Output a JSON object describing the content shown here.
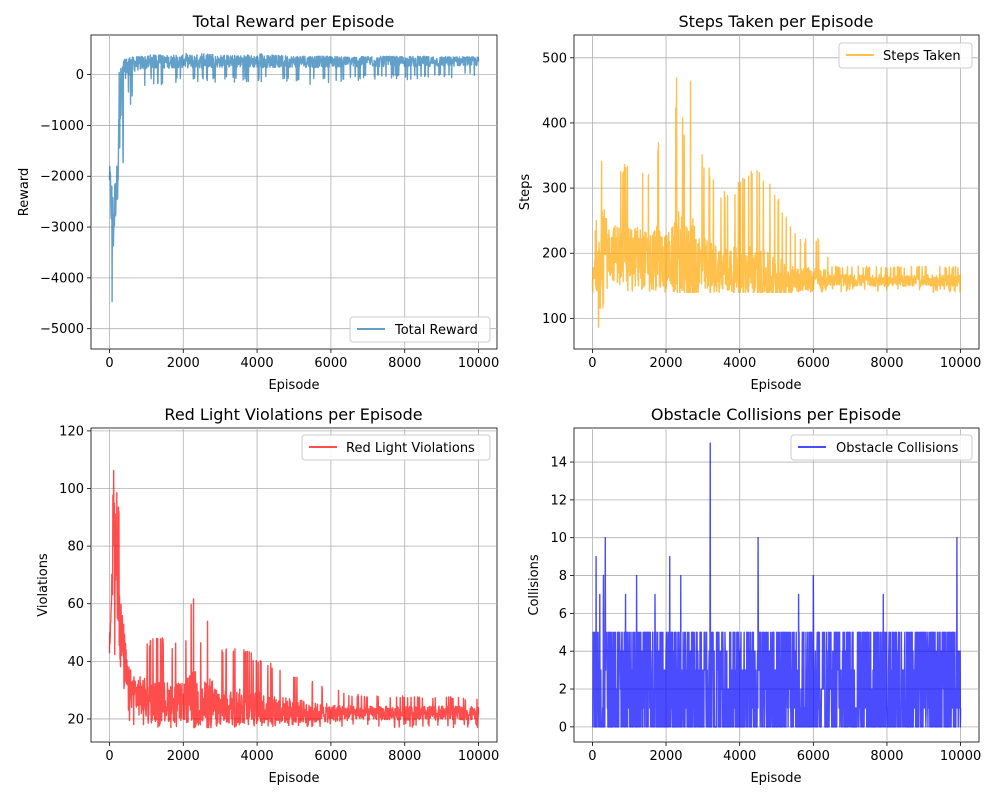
{
  "figure": {
    "layout": "2x2 grid"
  },
  "chart_data": [
    {
      "type": "line",
      "title": "Total Reward per Episode",
      "xlabel": "Episode",
      "ylabel": "Reward",
      "xlim": [
        -500,
        10500
      ],
      "ylim": [
        -5400,
        780
      ],
      "xticks": [
        0,
        2000,
        4000,
        6000,
        8000,
        10000
      ],
      "yticks": [
        -5000,
        -4000,
        -3000,
        -2000,
        -1000,
        0
      ],
      "ytick_labels": [
        "−5000",
        "−4000",
        "−3000",
        "−2000",
        "−1000",
        "0"
      ],
      "grid": true,
      "legend_position": "lower-right",
      "color": "#1f77b4",
      "opacity": 0.7,
      "series": [
        {
          "name": "Total Reward",
          "x": [
            0,
            50,
            100,
            150,
            200,
            250,
            300,
            350,
            400,
            450,
            500,
            600,
            700,
            800,
            1000,
            1200,
            1500,
            2000,
            2300,
            2500,
            3000,
            3500,
            4000,
            4500,
            5000,
            5500,
            6000,
            6500,
            7000,
            8000,
            9000,
            10000
          ],
          "y_max": [
            -1600,
            -1700,
            -2000,
            -2200,
            -1800,
            150,
            200,
            250,
            300,
            300,
            320,
            340,
            350,
            350,
            380,
            400,
            380,
            400,
            480,
            420,
            380,
            380,
            420,
            380,
            360,
            360,
            360,
            340,
            360,
            360,
            360,
            350
          ],
          "y_min": [
            -2500,
            -4500,
            -5100,
            -4700,
            -4000,
            -3800,
            -3200,
            -2500,
            -1000,
            -500,
            -400,
            -700,
            -300,
            -300,
            -250,
            -200,
            -200,
            -150,
            -150,
            -150,
            -150,
            -150,
            -150,
            -150,
            -150,
            -200,
            -150,
            -150,
            -100,
            -100,
            -80,
            -50
          ],
          "y_typ": [
            -2000,
            -2500,
            -3000,
            -2500,
            -2000,
            -1500,
            -800,
            -300,
            100,
            150,
            180,
            200,
            220,
            230,
            240,
            250,
            250,
            260,
            260,
            260,
            260,
            260,
            260,
            260,
            260,
            260,
            260,
            260,
            260,
            260,
            260,
            260
          ]
        }
      ]
    },
    {
      "type": "line",
      "title": "Steps Taken per Episode",
      "xlabel": "Episode",
      "ylabel": "Steps",
      "xlim": [
        -500,
        10500
      ],
      "ylim": [
        53,
        535
      ],
      "xticks": [
        0,
        2000,
        4000,
        6000,
        8000,
        10000
      ],
      "yticks": [
        100,
        200,
        300,
        400,
        500
      ],
      "ytick_labels": [
        "100",
        "200",
        "300",
        "400",
        "500"
      ],
      "grid": true,
      "legend_position": "top-right",
      "color": "#ffa500",
      "opacity": 0.7,
      "series": [
        {
          "name": "Steps Taken",
          "x": [
            0,
            100,
            200,
            300,
            400,
            500,
            700,
            1000,
            1200,
            1500,
            1800,
            2000,
            2250,
            2300,
            2500,
            2700,
            3000,
            3500,
            4000,
            4300,
            4500,
            5000,
            5500,
            6000,
            6200,
            6500,
            7000,
            8000,
            9000,
            10000
          ],
          "y_max": [
            180,
            250,
            320,
            385,
            300,
            320,
            350,
            330,
            360,
            330,
            380,
            310,
            400,
            515,
            400,
            480,
            350,
            300,
            310,
            340,
            330,
            300,
            230,
            220,
            225,
            180,
            180,
            180,
            180,
            180
          ],
          "y_min": [
            75,
            75,
            90,
            105,
            130,
            140,
            140,
            140,
            140,
            140,
            140,
            140,
            140,
            140,
            140,
            140,
            140,
            140,
            140,
            140,
            140,
            140,
            140,
            140,
            140,
            140,
            140,
            140,
            140,
            140
          ],
          "y_typ": [
            150,
            180,
            200,
            210,
            210,
            200,
            200,
            195,
            195,
            190,
            190,
            190,
            190,
            190,
            185,
            180,
            180,
            175,
            170,
            170,
            165,
            160,
            160,
            160,
            160,
            160,
            158,
            158,
            158,
            158
          ]
        }
      ]
    },
    {
      "type": "line",
      "title": "Red Light Violations per Episode",
      "xlabel": "Episode",
      "ylabel": "Violations",
      "xlim": [
        -500,
        10500
      ],
      "ylim": [
        12,
        121
      ],
      "xticks": [
        0,
        2000,
        4000,
        6000,
        8000,
        10000
      ],
      "yticks": [
        20,
        40,
        60,
        80,
        100,
        120
      ],
      "ytick_labels": [
        "20",
        "40",
        "60",
        "80",
        "100",
        "120"
      ],
      "grid": true,
      "legend_position": "top-right",
      "color": "#ff0000",
      "opacity": 0.7,
      "series": [
        {
          "name": "Red Light Violations",
          "x": [
            0,
            50,
            100,
            150,
            200,
            300,
            400,
            500,
            600,
            800,
            1000,
            1500,
            2000,
            2300,
            2500,
            2700,
            3000,
            3500,
            4000,
            4500,
            5000,
            5500,
            6000,
            6500,
            7000,
            8000,
            9000,
            10000
          ],
          "y_max": [
            55,
            80,
            104,
            116,
            100,
            90,
            75,
            50,
            48,
            49,
            48,
            49,
            45,
            69,
            45,
            62,
            44,
            46,
            42,
            39,
            36,
            33,
            31,
            29,
            28,
            28,
            28,
            27
          ],
          "y_min": [
            36,
            36,
            38,
            40,
            36,
            30,
            23,
            20,
            18,
            18,
            17,
            17,
            17,
            17,
            17,
            17,
            17,
            17,
            17,
            17,
            17,
            17,
            17,
            17,
            17,
            17,
            17,
            17
          ],
          "y_typ": [
            45,
            60,
            75,
            80,
            70,
            50,
            40,
            32,
            30,
            28,
            27,
            26,
            26,
            26,
            25,
            25,
            24,
            24,
            24,
            23,
            23,
            22,
            22,
            22,
            22,
            22,
            22,
            22
          ]
        }
      ]
    },
    {
      "type": "line",
      "title": "Obstacle Collisions per Episode",
      "xlabel": "Episode",
      "ylabel": "Collisions",
      "xlim": [
        -500,
        10500
      ],
      "ylim": [
        -0.8,
        15.8
      ],
      "xticks": [
        0,
        2000,
        4000,
        6000,
        8000,
        10000
      ],
      "yticks": [
        0,
        2,
        4,
        6,
        8,
        10,
        12,
        14
      ],
      "ytick_labels": [
        "0",
        "2",
        "4",
        "6",
        "8",
        "10",
        "12",
        "14"
      ],
      "grid": true,
      "legend_position": "top-right",
      "color": "#0000ff",
      "opacity": 0.7,
      "series": [
        {
          "name": "Obstacle Collisions",
          "spikes": [
            {
              "x": 100,
              "y": 9
            },
            {
              "x": 200,
              "y": 7
            },
            {
              "x": 300,
              "y": 8
            },
            {
              "x": 350,
              "y": 10
            },
            {
              "x": 900,
              "y": 7
            },
            {
              "x": 1200,
              "y": 8
            },
            {
              "x": 1700,
              "y": 7
            },
            {
              "x": 2100,
              "y": 9
            },
            {
              "x": 2400,
              "y": 8
            },
            {
              "x": 3200,
              "y": 15
            },
            {
              "x": 4500,
              "y": 10
            },
            {
              "x": 5600,
              "y": 7
            },
            {
              "x": 6000,
              "y": 8
            },
            {
              "x": 7900,
              "y": 7
            },
            {
              "x": 9900,
              "y": 10
            }
          ]
        }
      ]
    }
  ]
}
